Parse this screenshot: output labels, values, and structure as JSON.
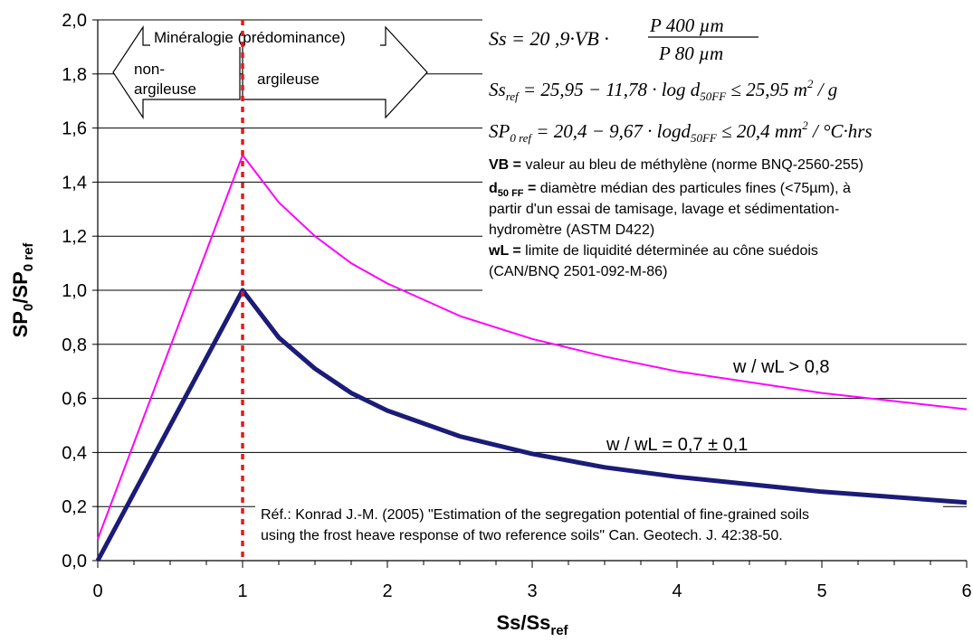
{
  "chart_data": {
    "type": "line",
    "xlabel": "Ss/Ss",
    "xlabel_sub": "ref",
    "ylabel": "SP",
    "ylabel_sub1": "0",
    "ylabel_mid": "/SP",
    "ylabel_sub2": "0 ref",
    "xlim": [
      0,
      6
    ],
    "ylim": [
      0,
      2.0
    ],
    "xticks": [
      "0",
      "1",
      "2",
      "3",
      "4",
      "5",
      "6"
    ],
    "yticks": [
      "0,0",
      "0,2",
      "0,4",
      "0,6",
      "0,8",
      "1,0",
      "1,2",
      "1,4",
      "1,6",
      "1,8",
      "2,0"
    ],
    "grid": "horizontal",
    "reference_line": {
      "x": 1,
      "color": "#e8191b",
      "style": "dotted"
    },
    "series": [
      {
        "name": "w / wL = 0,7 ± 0,1",
        "color": "#1b1b78",
        "width": 5,
        "x": [
          0,
          1,
          1.25,
          1.5,
          1.75,
          2,
          2.5,
          3,
          3.5,
          4,
          5,
          6
        ],
        "y": [
          0.0,
          1.0,
          0.825,
          0.71,
          0.62,
          0.555,
          0.46,
          0.395,
          0.345,
          0.31,
          0.255,
          0.215
        ]
      },
      {
        "name": "w / wL > 0,8",
        "color": "#ff00ff",
        "width": 2,
        "x": [
          0,
          1,
          1.25,
          1.5,
          1.75,
          2,
          2.5,
          3,
          3.5,
          4,
          5,
          6
        ],
        "y": [
          0.08,
          1.5,
          1.325,
          1.2,
          1.1,
          1.025,
          0.905,
          0.82,
          0.755,
          0.7,
          0.62,
          0.56
        ]
      }
    ]
  },
  "annotations": {
    "mineralogy_title": "Minéralogie (prédominance)",
    "left_arrow_line1": "non-",
    "left_arrow_line2": "argileuse",
    "right_arrow_label": "argileuse",
    "series_label_high": "w / wL > 0,8",
    "series_label_low": "w / wL = 0,7 ± 0,1",
    "formula1": "Ss = 20 ,9·VB · P 400 µm / P 80 µm",
    "formula2": "Ss_ref = 25,95 − 11,78 · log d_50FF ≤ 25,95 m² / g",
    "formula3": "SP_0ref = 20,4 − 9,67 · log d_50FF ≤ 20,4 mm² / °C·hrs",
    "def_vb_key": "VB =",
    "def_vb_text": " valeur au bleu de méthylène (norme BNQ-2560-255)",
    "def_d50_key": "d",
    "def_d50_sub": "50 FF",
    "def_d50_key_end": " =",
    "def_d50_text1": " diamètre médian des particules fines (<75µm), à",
    "def_d50_text2": "partir d'un essai de tamisage, lavage et sédimentation-",
    "def_d50_text3": "hydromètre (ASTM D422)",
    "def_wl_key": "wL =",
    "def_wl_text1": " limite de liquidité déterminée au cône suédois",
    "def_wl_text2": "(CAN/BNQ 2501-092-M-86)",
    "ref_line1": "Réf.: Konrad J.-M. (2005) \"Estimation of the segregation potential of fine-grained soils",
    "ref_line2": "using the frost heave response of two reference soils\" Can. Geotech. J. 42:38-50."
  }
}
